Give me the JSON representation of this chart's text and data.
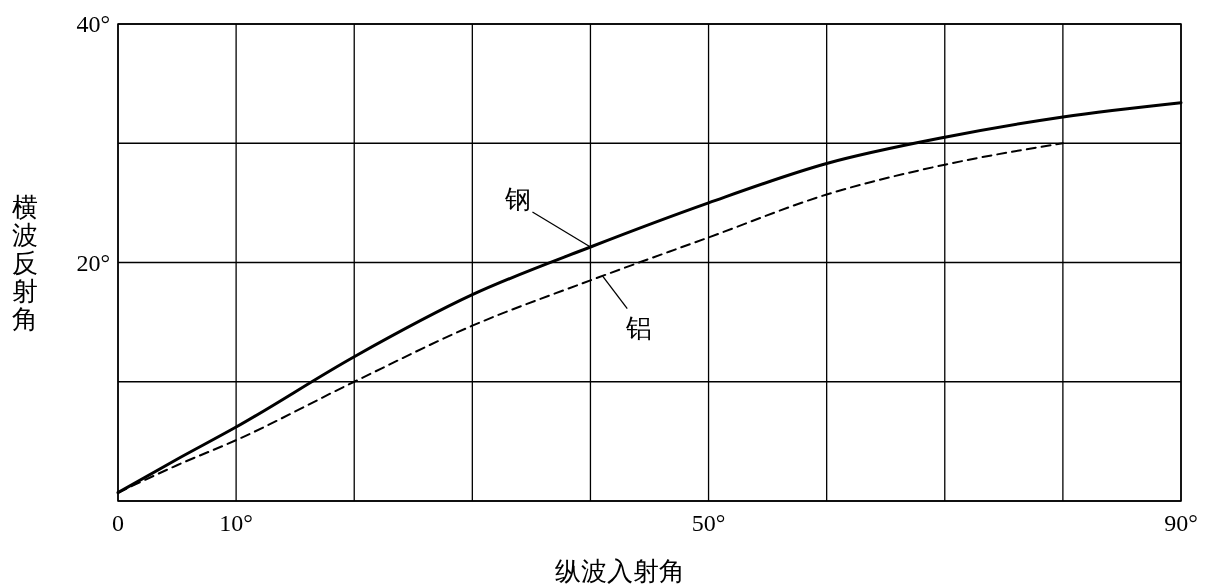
{
  "chart_data": {
    "type": "line",
    "xlabel": "纵波入射角",
    "ylabel": "横波反射角",
    "xlim": [
      0,
      90
    ],
    "ylim": [
      0,
      40
    ],
    "xticks": [
      {
        "value": 0,
        "label": "0"
      },
      {
        "value": 10,
        "label": "10°"
      },
      {
        "value": 20,
        "label": null
      },
      {
        "value": 30,
        "label": null
      },
      {
        "value": 40,
        "label": null
      },
      {
        "value": 50,
        "label": "50°"
      },
      {
        "value": 60,
        "label": null
      },
      {
        "value": 70,
        "label": null
      },
      {
        "value": 80,
        "label": null
      },
      {
        "value": 90,
        "label": "90°"
      }
    ],
    "yticks": [
      {
        "value": 0,
        "label": null
      },
      {
        "value": 10,
        "label": null
      },
      {
        "value": 20,
        "label": "20°"
      },
      {
        "value": 30,
        "label": null
      },
      {
        "value": 40,
        "label": "40°"
      }
    ],
    "grid": true,
    "x": [
      0,
      5,
      10,
      20,
      30,
      40,
      50,
      60,
      70,
      80,
      90
    ],
    "series": [
      {
        "color": "#000000",
        "line_style": "solid",
        "values": [
          0.7,
          3.5,
          6.2,
          12.1,
          17.3,
          21.3,
          25,
          28.3,
          30.5,
          32.2,
          33.4
        ]
      },
      {
        "color": "#000000",
        "line_style": "dashed",
        "values": [
          0.7,
          3,
          5.1,
          10,
          14.7,
          18.5,
          22.1,
          25.7,
          28.2,
          30,
          null
        ]
      }
    ],
    "annotations": [
      {
        "text": "钢",
        "x": 40,
        "y": 21.3
      },
      {
        "text": "铝",
        "x": 41,
        "y": 18.9
      }
    ]
  }
}
